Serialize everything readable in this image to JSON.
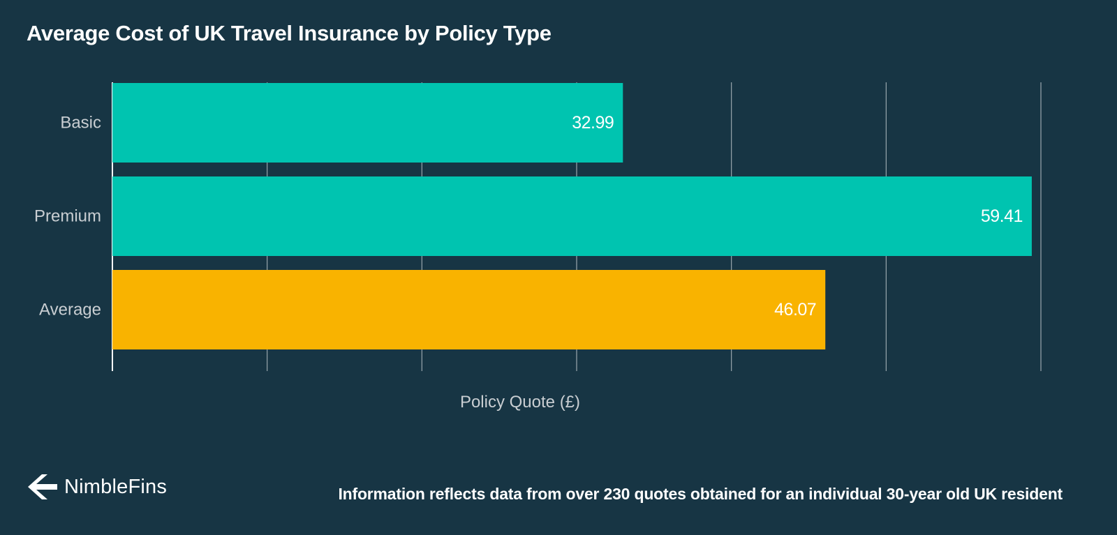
{
  "title": "Average Cost of UK Travel Insurance by Policy Type",
  "chart_data": {
    "type": "bar",
    "orientation": "horizontal",
    "categories": [
      "Basic",
      "Premium",
      "Average"
    ],
    "values": [
      32.99,
      59.41,
      46.07
    ],
    "value_labels": [
      "32.99",
      "59.41",
      "46.07"
    ],
    "colors": [
      "#00c4b0",
      "#00c4b0",
      "#f9b300"
    ],
    "xlabel": "Policy Quote (£)",
    "ylabel": "",
    "xlim": [
      0,
      60
    ],
    "grid": true,
    "data_labels": "inside-end",
    "background": "#173544",
    "grid_color": "#9aa7ae",
    "category_label_color": "#c9ced2"
  },
  "branding": {
    "logo_icon": "nimblefins-arrow-icon",
    "logo_text": "NimbleFins"
  },
  "footnote": "Information reflects data from over 230 quotes obtained for an individual 30-year old UK resident"
}
